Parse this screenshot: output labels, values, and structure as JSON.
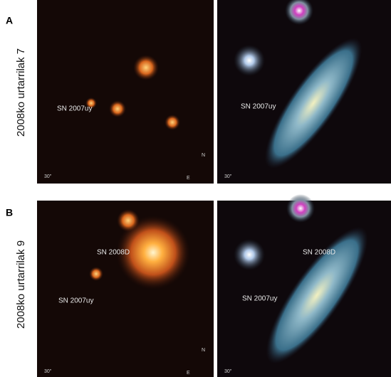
{
  "rows": [
    {
      "letter": "A",
      "date": "2008ko urtarrilak 7",
      "xray_labels": [
        "SN 2007uy"
      ],
      "optical_labels": [
        "SN 2007uy"
      ]
    },
    {
      "letter": "B",
      "date": "2008ko urtarrilak 9",
      "xray_labels": [
        "SN 2008D",
        "SN 2007uy"
      ],
      "optical_labels": [
        "SN 2008D",
        "SN 2007uy"
      ]
    }
  ],
  "scale": "30\"",
  "north": "N",
  "east": "E"
}
